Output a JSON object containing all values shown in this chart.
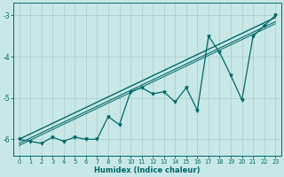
{
  "xlabel": "Humidex (Indice chaleur)",
  "ylabel": "",
  "background_color": "#c8e8e8",
  "grid_color": "#b0d0d0",
  "line_color": "#006868",
  "xlim": [
    -0.5,
    23.5
  ],
  "ylim": [
    -6.4,
    -2.7
  ],
  "yticks": [
    -6,
    -5,
    -4,
    -3
  ],
  "xticks": [
    0,
    1,
    2,
    3,
    4,
    5,
    6,
    7,
    8,
    9,
    10,
    11,
    12,
    13,
    14,
    15,
    16,
    17,
    18,
    19,
    20,
    21,
    22,
    23
  ],
  "data_x": [
    0,
    1,
    2,
    3,
    4,
    5,
    6,
    7,
    8,
    9,
    10,
    11,
    12,
    13,
    14,
    15,
    16,
    17,
    18,
    19,
    20,
    21,
    22,
    23
  ],
  "data_y": [
    -6.0,
    -6.05,
    -6.1,
    -5.95,
    -6.05,
    -5.95,
    -6.0,
    -6.0,
    -5.45,
    -5.65,
    -4.85,
    -4.75,
    -4.9,
    -4.85,
    -5.1,
    -4.75,
    -5.3,
    -3.5,
    -3.9,
    -4.45,
    -5.05,
    -3.5,
    -3.25,
    -3.0
  ],
  "reg1_x0": 0,
  "reg1_y0": -6.0,
  "reg1_x1": 23,
  "reg1_y1": -3.05,
  "reg2_x0": 0,
  "reg2_y0": -6.1,
  "reg2_x1": 23,
  "reg2_y1": -3.15,
  "reg3_x0": 0,
  "reg3_y0": -6.15,
  "reg3_x1": 23,
  "reg3_y1": -3.2
}
